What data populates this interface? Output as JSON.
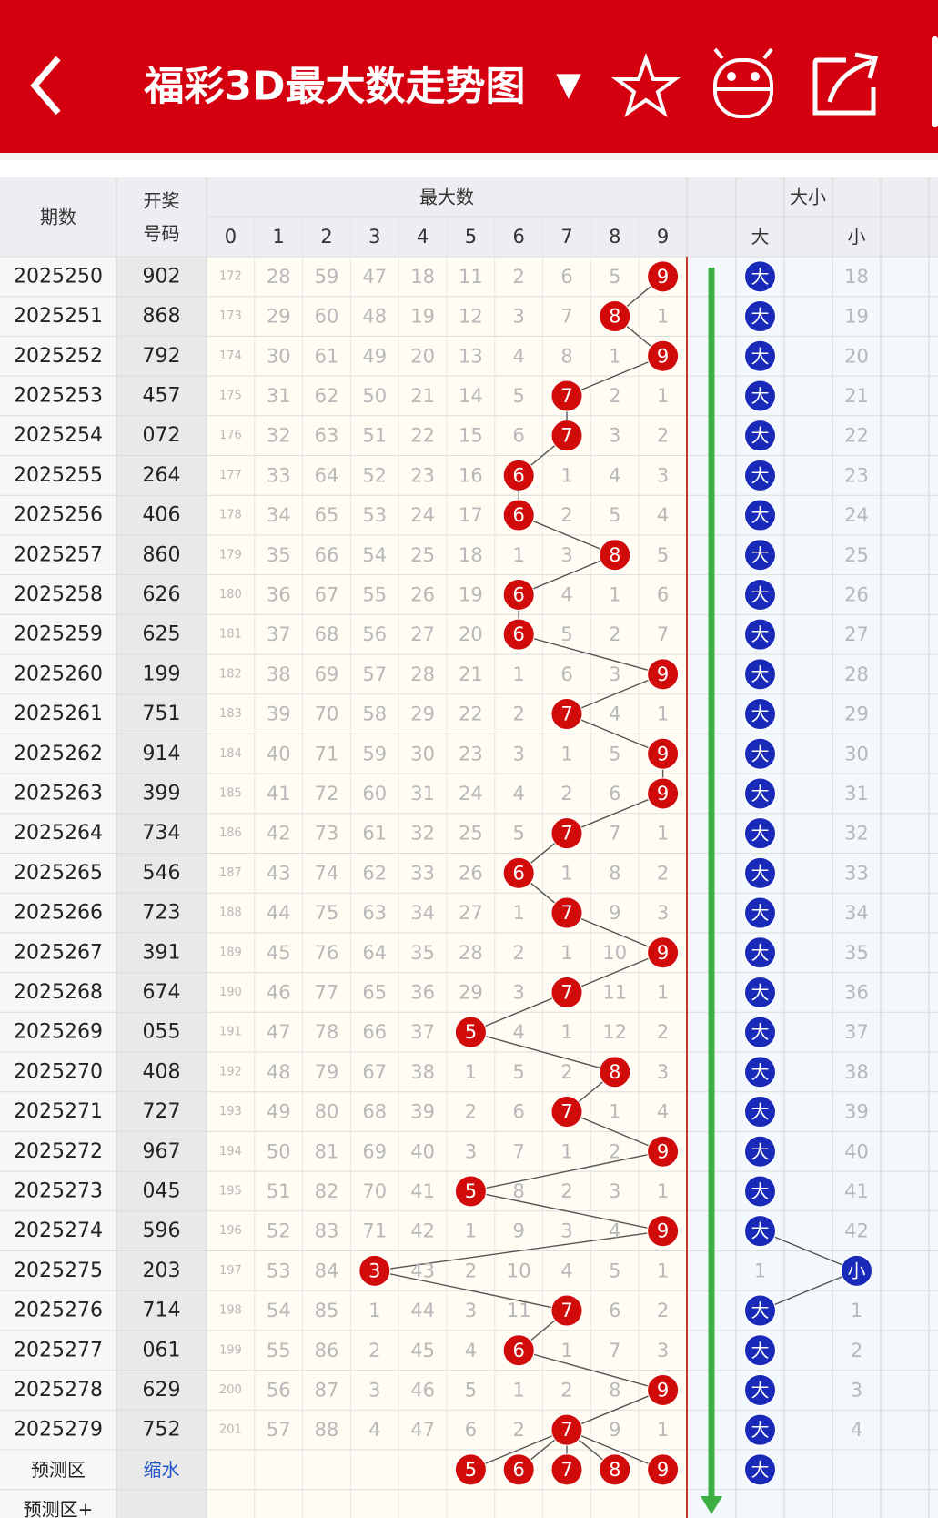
{
  "header": {
    "title": "福彩3D最大数走势图",
    "dropdown": "▼"
  },
  "table": {
    "head": {
      "issue": "期数",
      "number": "开奖号码",
      "max_group": "最大数",
      "digits": [
        "0",
        "1",
        "2",
        "3",
        "4",
        "5",
        "6",
        "7",
        "8",
        "9"
      ],
      "size_group": "大小",
      "big": "大",
      "small": "小"
    },
    "rows": [
      {
        "issue": "2025250",
        "number": "902",
        "cells": [
          172,
          28,
          59,
          47,
          18,
          11,
          2,
          6,
          5,
          9
        ],
        "big": "大",
        "small": 18
      },
      {
        "issue": "2025251",
        "number": "868",
        "cells": [
          173,
          29,
          60,
          48,
          19,
          12,
          3,
          7,
          8,
          1
        ],
        "big": "大",
        "small": 19
      },
      {
        "issue": "2025252",
        "number": "792",
        "cells": [
          174,
          30,
          61,
          49,
          20,
          13,
          4,
          8,
          1,
          9
        ],
        "big": "大",
        "small": 20
      },
      {
        "issue": "2025253",
        "number": "457",
        "cells": [
          175,
          31,
          62,
          50,
          21,
          14,
          5,
          7,
          2,
          1
        ],
        "big": "大",
        "small": 21
      },
      {
        "issue": "2025254",
        "number": "072",
        "cells": [
          176,
          32,
          63,
          51,
          22,
          15,
          6,
          7,
          3,
          2
        ],
        "big": "大",
        "small": 22
      },
      {
        "issue": "2025255",
        "number": "264",
        "cells": [
          177,
          33,
          64,
          52,
          23,
          16,
          6,
          1,
          4,
          3
        ],
        "big": "大",
        "small": 23
      },
      {
        "issue": "2025256",
        "number": "406",
        "cells": [
          178,
          34,
          65,
          53,
          24,
          17,
          6,
          2,
          5,
          4
        ],
        "big": "大",
        "small": 24
      },
      {
        "issue": "2025257",
        "number": "860",
        "cells": [
          179,
          35,
          66,
          54,
          25,
          18,
          1,
          3,
          8,
          5
        ],
        "big": "大",
        "small": 25
      },
      {
        "issue": "2025258",
        "number": "626",
        "cells": [
          180,
          36,
          67,
          55,
          26,
          19,
          6,
          4,
          1,
          6
        ],
        "big": "大",
        "small": 26
      },
      {
        "issue": "2025259",
        "number": "625",
        "cells": [
          181,
          37,
          68,
          56,
          27,
          20,
          6,
          5,
          2,
          7
        ],
        "big": "大",
        "small": 27
      },
      {
        "issue": "2025260",
        "number": "199",
        "cells": [
          182,
          38,
          69,
          57,
          28,
          21,
          1,
          6,
          3,
          9
        ],
        "big": "大",
        "small": 28
      },
      {
        "issue": "2025261",
        "number": "751",
        "cells": [
          183,
          39,
          70,
          58,
          29,
          22,
          2,
          7,
          4,
          1
        ],
        "big": "大",
        "small": 29
      },
      {
        "issue": "2025262",
        "number": "914",
        "cells": [
          184,
          40,
          71,
          59,
          30,
          23,
          3,
          1,
          5,
          9
        ],
        "big": "大",
        "small": 30
      },
      {
        "issue": "2025263",
        "number": "399",
        "cells": [
          185,
          41,
          72,
          60,
          31,
          24,
          4,
          2,
          6,
          9
        ],
        "big": "大",
        "small": 31
      },
      {
        "issue": "2025264",
        "number": "734",
        "cells": [
          186,
          42,
          73,
          61,
          32,
          25,
          5,
          7,
          7,
          1
        ],
        "big": "大",
        "small": 32
      },
      {
        "issue": "2025265",
        "number": "546",
        "cells": [
          187,
          43,
          74,
          62,
          33,
          26,
          6,
          1,
          8,
          2
        ],
        "big": "大",
        "small": 33
      },
      {
        "issue": "2025266",
        "number": "723",
        "cells": [
          188,
          44,
          75,
          63,
          34,
          27,
          1,
          7,
          9,
          3
        ],
        "big": "大",
        "small": 34
      },
      {
        "issue": "2025267",
        "number": "391",
        "cells": [
          189,
          45,
          76,
          64,
          35,
          28,
          2,
          1,
          10,
          9
        ],
        "big": "大",
        "small": 35
      },
      {
        "issue": "2025268",
        "number": "674",
        "cells": [
          190,
          46,
          77,
          65,
          36,
          29,
          3,
          7,
          11,
          1
        ],
        "big": "大",
        "small": 36
      },
      {
        "issue": "2025269",
        "number": "055",
        "cells": [
          191,
          47,
          78,
          66,
          37,
          5,
          4,
          1,
          12,
          2
        ],
        "big": "大",
        "small": 37
      },
      {
        "issue": "2025270",
        "number": "408",
        "cells": [
          192,
          48,
          79,
          67,
          38,
          1,
          5,
          2,
          8,
          3
        ],
        "big": "大",
        "small": 38
      },
      {
        "issue": "2025271",
        "number": "727",
        "cells": [
          193,
          49,
          80,
          68,
          39,
          2,
          6,
          7,
          1,
          4
        ],
        "big": "大",
        "small": 39
      },
      {
        "issue": "2025272",
        "number": "967",
        "cells": [
          194,
          50,
          81,
          69,
          40,
          3,
          7,
          1,
          2,
          9
        ],
        "big": "大",
        "small": 40
      },
      {
        "issue": "2025273",
        "number": "045",
        "cells": [
          195,
          51,
          82,
          70,
          41,
          5,
          8,
          2,
          3,
          1
        ],
        "big": "大",
        "small": 41
      },
      {
        "issue": "2025274",
        "number": "596",
        "cells": [
          196,
          52,
          83,
          71,
          42,
          1,
          9,
          3,
          4,
          9
        ],
        "big": "大",
        "small": 42
      },
      {
        "issue": "2025275",
        "number": "203",
        "cells": [
          197,
          53,
          84,
          3,
          43,
          2,
          10,
          4,
          5,
          1
        ],
        "big": 1,
        "small": "小"
      },
      {
        "issue": "2025276",
        "number": "714",
        "cells": [
          198,
          54,
          85,
          1,
          44,
          3,
          11,
          7,
          6,
          2
        ],
        "big": "大",
        "small": 1
      },
      {
        "issue": "2025277",
        "number": "061",
        "cells": [
          199,
          55,
          86,
          2,
          45,
          4,
          6,
          1,
          7,
          3
        ],
        "big": "大",
        "small": 2
      },
      {
        "issue": "2025278",
        "number": "629",
        "cells": [
          200,
          56,
          87,
          3,
          46,
          5,
          1,
          2,
          8,
          9
        ],
        "big": "大",
        "small": 3
      },
      {
        "issue": "2025279",
        "number": "752",
        "cells": [
          201,
          57,
          88,
          4,
          47,
          6,
          2,
          7,
          9,
          1
        ],
        "big": "大",
        "small": 4
      }
    ],
    "prediction": {
      "label": "预测区",
      "note": "缩水",
      "digits": [
        5,
        6,
        7,
        8,
        9
      ],
      "big": "大"
    },
    "prediction_plus": {
      "label": "预测区+"
    }
  }
}
